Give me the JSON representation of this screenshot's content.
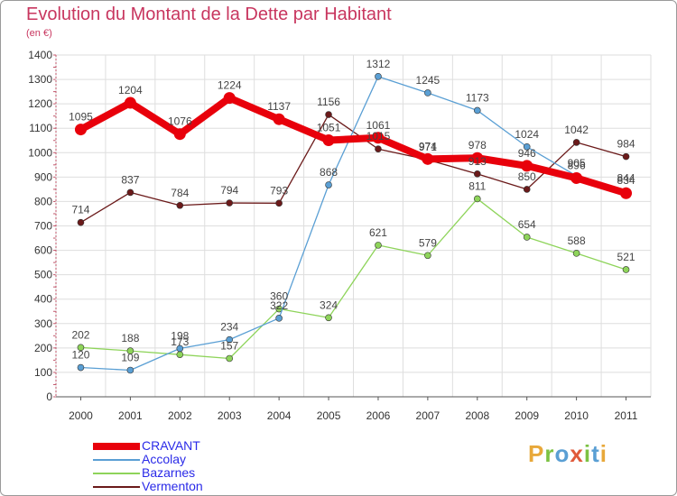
{
  "title": "Evolution du Montant de la Dette par Habitant",
  "subtitle": "(en €)",
  "logo": {
    "text": "Proxiti",
    "colors": [
      "#e8a83a",
      "#7cc243",
      "#5a9fd4",
      "#e05a3a",
      "#7cc243",
      "#5a9fd4",
      "#e8a83a"
    ]
  },
  "chart_data": {
    "type": "line",
    "x": [
      "2000",
      "2001",
      "2002",
      "2003",
      "2004",
      "2005",
      "2006",
      "2007",
      "2008",
      "2009",
      "2010",
      "2011"
    ],
    "ylim": [
      0,
      1400
    ],
    "yticks": [
      0,
      100,
      200,
      300,
      400,
      500,
      600,
      700,
      800,
      900,
      1000,
      1100,
      1200,
      1300,
      1400
    ],
    "grid": true,
    "legend_position": "bottom-left",
    "series": [
      {
        "name": "CRAVANT",
        "color": "#e8000b",
        "values": [
          1095,
          1204,
          1076,
          1224,
          1137,
          1051,
          1061,
          974,
          978,
          946,
          896,
          834
        ]
      },
      {
        "name": "Accolay",
        "color": "#5a9fd4",
        "values": [
          120,
          109,
          198,
          234,
          322,
          868,
          1312,
          1245,
          1173,
          1024,
          905,
          844
        ]
      },
      {
        "name": "Bazarnes",
        "color": "#8ed45a",
        "values": [
          202,
          188,
          173,
          157,
          360,
          324,
          621,
          579,
          811,
          654,
          588,
          521
        ]
      },
      {
        "name": "Vermenton",
        "color": "#6b1a1a",
        "values": [
          714,
          837,
          784,
          794,
          793,
          1156,
          1015,
          971,
          913,
          850,
          1042,
          984
        ]
      }
    ]
  }
}
